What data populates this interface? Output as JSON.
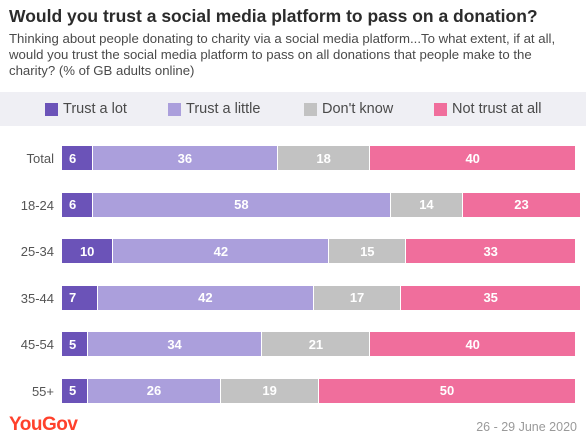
{
  "header": {
    "title": "Would you trust a social media platform to pass on a donation?",
    "subtitle": "Thinking about people donating to charity via a social media platform...To what extent, if at all, would you trust the social media platform to pass on all donations that people make to the charity? (% of GB adults online)"
  },
  "footer": {
    "logo": "YouGov",
    "date": "26 - 29 June 2020"
  },
  "chart_data": {
    "type": "bar",
    "orientation": "horizontal",
    "stacked": true,
    "legend_position": "top",
    "categories": [
      "Total",
      "18-24",
      "25-34",
      "35-44",
      "45-54",
      "55+"
    ],
    "series": [
      {
        "name": "Trust a lot",
        "color": "#6b53b8",
        "values": [
          6,
          6,
          10,
          7,
          5,
          5
        ]
      },
      {
        "name": "Trust a little",
        "color": "#ab9fdc",
        "values": [
          36,
          58,
          42,
          42,
          34,
          26
        ]
      },
      {
        "name": "Don't know",
        "color": "#c2c2c2",
        "values": [
          18,
          14,
          15,
          17,
          21,
          19
        ]
      },
      {
        "name": "Not trust at all",
        "color": "#f06e9c",
        "values": [
          40,
          23,
          33,
          35,
          40,
          50
        ]
      }
    ],
    "xlim": [
      0,
      100
    ]
  }
}
